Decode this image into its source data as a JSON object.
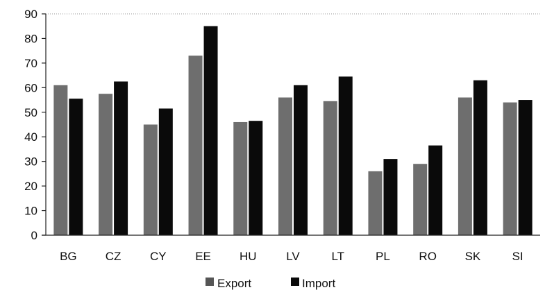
{
  "chart_data": {
    "type": "bar",
    "title": "",
    "xlabel": "",
    "ylabel": "",
    "ylim": [
      0,
      90
    ],
    "yticks": [
      0,
      10,
      20,
      30,
      40,
      50,
      60,
      70,
      80,
      90
    ],
    "grid": "top-border-only",
    "legend_position": "bottom-center",
    "categories": [
      "BG",
      "CZ",
      "CY",
      "EE",
      "HU",
      "LV",
      "LT",
      "PL",
      "RO",
      "SK",
      "SI"
    ],
    "series": [
      {
        "name": "Export",
        "values": [
          61,
          57.5,
          45,
          73,
          46,
          56,
          54.5,
          26,
          29,
          56,
          54
        ],
        "color": "#555555"
      },
      {
        "name": "Import",
        "values": [
          55.5,
          62.5,
          51.5,
          85,
          46.5,
          61,
          64.5,
          31,
          36.5,
          63,
          55
        ],
        "color": "#0a0a0a"
      }
    ]
  }
}
